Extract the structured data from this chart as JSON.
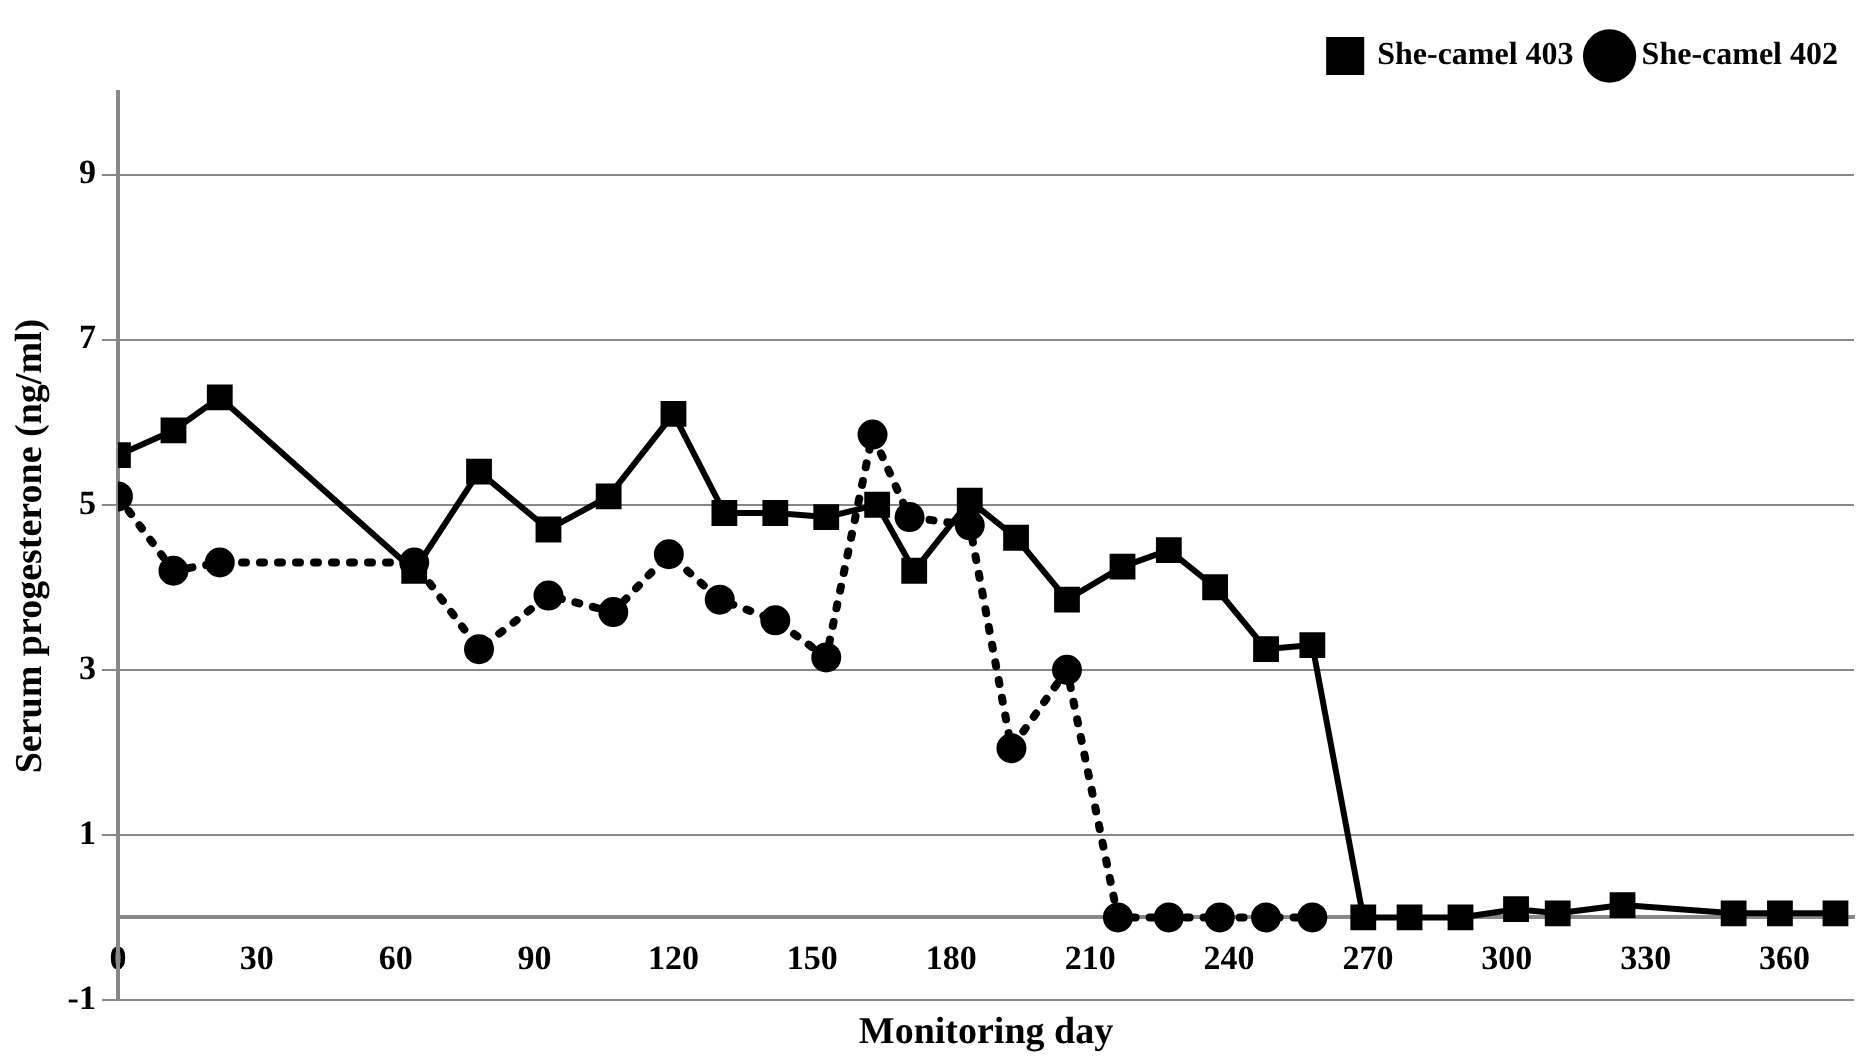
{
  "chart_data": {
    "type": "line",
    "xlabel": "Monitoring day",
    "ylabel": "Serum progesterone (ng/ml)",
    "xlim": [
      0,
      375
    ],
    "xticks": [
      0,
      30,
      60,
      90,
      120,
      150,
      180,
      210,
      240,
      270,
      300,
      330,
      360
    ],
    "ylim": [
      -1,
      10
    ],
    "yticks": [
      -1,
      1,
      3,
      5,
      7,
      9
    ],
    "grid": "y",
    "legend": "top right",
    "series": [
      {
        "name": "She-camel 402",
        "color": "#000000",
        "marker": "circle",
        "line_style": "dotted",
        "x": [
          0,
          12,
          22,
          64,
          78,
          93,
          107,
          119,
          130,
          142,
          153,
          163,
          171,
          184,
          193,
          205,
          216,
          227,
          238,
          248,
          258
        ],
        "values": [
          5.1,
          4.2,
          4.3,
          4.3,
          3.25,
          3.9,
          3.7,
          4.4,
          3.85,
          3.6,
          3.15,
          5.85,
          4.85,
          4.75,
          2.05,
          3.0,
          0,
          0,
          0,
          0,
          0
        ]
      },
      {
        "name": "She-camel 403",
        "color": "#000000",
        "marker": "square",
        "line_style": "solid",
        "x": [
          0,
          12,
          22,
          64,
          78,
          93,
          106,
          120,
          131,
          142,
          153,
          164,
          172,
          184,
          194,
          205,
          217,
          227,
          237,
          248,
          258,
          269,
          279,
          290,
          302,
          311,
          325,
          349,
          359,
          371
        ],
        "values": [
          5.6,
          5.9,
          6.3,
          4.2,
          5.4,
          4.7,
          5.1,
          6.1,
          4.9,
          4.9,
          4.85,
          5.0,
          4.2,
          5.05,
          4.6,
          3.85,
          4.25,
          4.45,
          4.0,
          3.25,
          3.3,
          0,
          0,
          0,
          0.1,
          0.05,
          0.15,
          0.05,
          0.05,
          0.05
        ]
      }
    ]
  }
}
